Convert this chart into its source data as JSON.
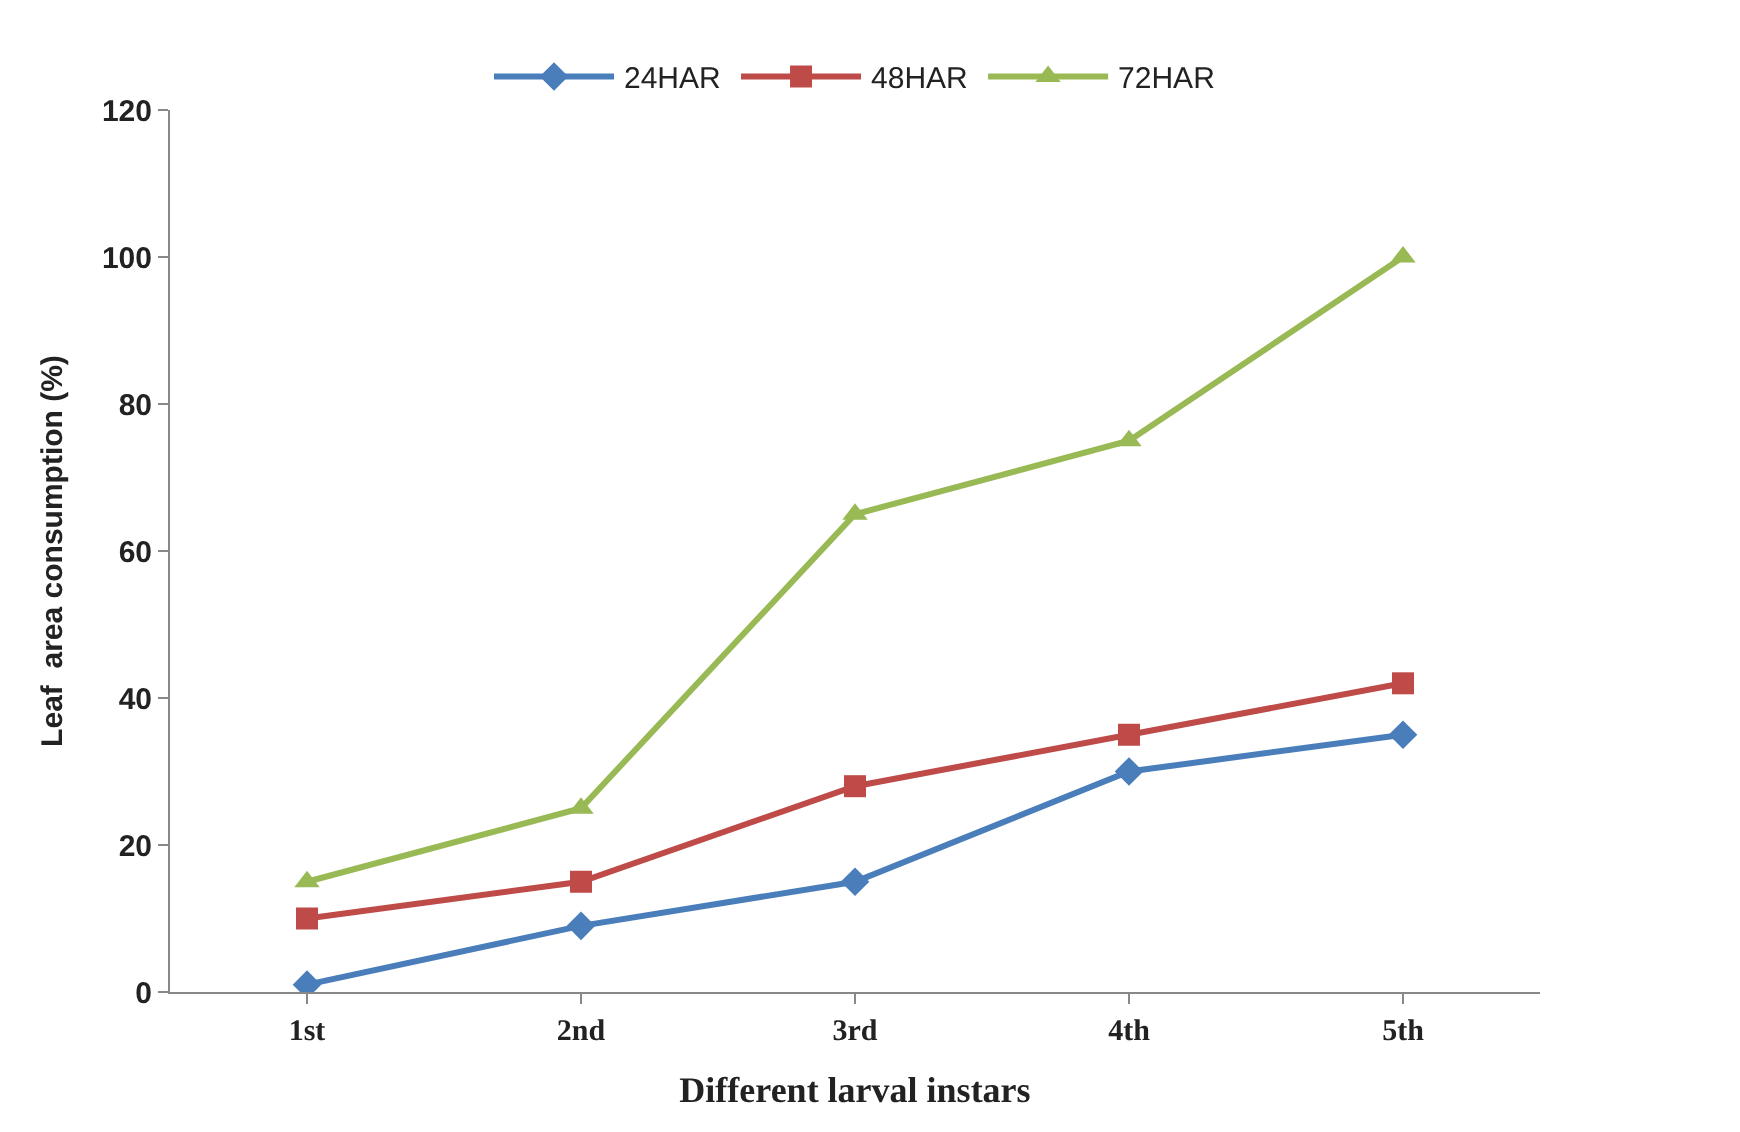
{
  "chart_data": {
    "type": "line",
    "xlabel": "Different larval instars",
    "ylabel": "Leaf  area consumption (%)",
    "categories": [
      "1st",
      "2nd",
      "3rd",
      "4th",
      "5th"
    ],
    "series": [
      {
        "name": "24HAR",
        "color": "#4a7ebb",
        "marker": "diamond",
        "values": [
          1,
          9,
          15,
          30,
          35
        ]
      },
      {
        "name": "48HAR",
        "color": "#be4b48",
        "marker": "square",
        "values": [
          10,
          15,
          28,
          35,
          42
        ]
      },
      {
        "name": "72HAR",
        "color": "#98b954",
        "marker": "triangle",
        "values": [
          15,
          25,
          65,
          75,
          100
        ]
      }
    ],
    "ylim": [
      0,
      120
    ],
    "yticks": [
      0,
      20,
      40,
      60,
      80,
      100,
      120
    ],
    "legend": "top",
    "line_style": "solid"
  }
}
